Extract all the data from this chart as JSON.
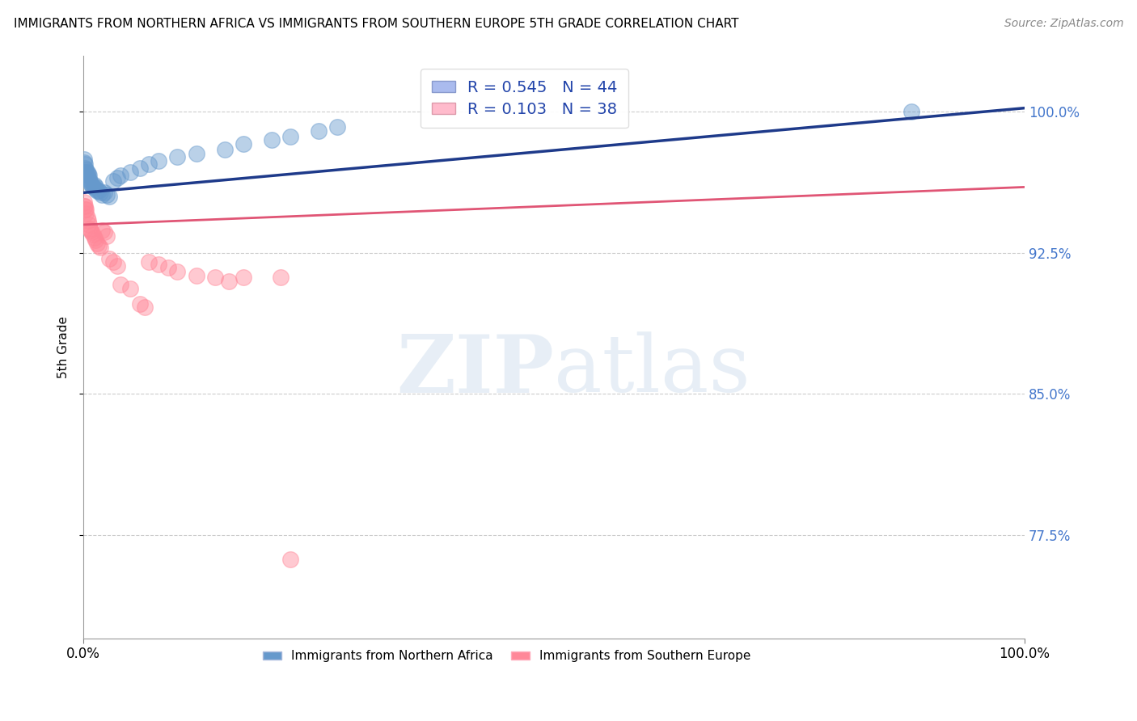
{
  "title": "IMMIGRANTS FROM NORTHERN AFRICA VS IMMIGRANTS FROM SOUTHERN EUROPE 5TH GRADE CORRELATION CHART",
  "source": "Source: ZipAtlas.com",
  "ylabel": "5th Grade",
  "yticks": [
    0.775,
    0.85,
    0.925,
    1.0
  ],
  "ytick_labels": [
    "77.5%",
    "85.0%",
    "92.5%",
    "100.0%"
  ],
  "xlim": [
    0.0,
    1.0
  ],
  "ylim": [
    0.72,
    1.03
  ],
  "legend_blue_label": "Immigrants from Northern Africa",
  "legend_pink_label": "Immigrants from Southern Europe",
  "R_blue": 0.545,
  "N_blue": 44,
  "R_pink": 0.103,
  "N_pink": 38,
  "blue_color": "#6699CC",
  "pink_color": "#FF8899",
  "blue_line_color": "#1E3A8A",
  "pink_line_color": "#E05575",
  "blue_x": [
    0.001,
    0.001,
    0.002,
    0.002,
    0.002,
    0.003,
    0.003,
    0.004,
    0.004,
    0.005,
    0.005,
    0.006,
    0.006,
    0.007,
    0.008,
    0.009,
    0.01,
    0.011,
    0.012,
    0.013,
    0.013,
    0.015,
    0.016,
    0.018,
    0.02,
    0.022,
    0.025,
    0.028,
    0.032,
    0.036,
    0.04,
    0.05,
    0.06,
    0.07,
    0.08,
    0.1,
    0.12,
    0.15,
    0.17,
    0.2,
    0.22,
    0.25,
    0.27,
    0.88
  ],
  "blue_y": [
    0.973,
    0.975,
    0.968,
    0.97,
    0.972,
    0.967,
    0.969,
    0.966,
    0.968,
    0.965,
    0.967,
    0.964,
    0.966,
    0.963,
    0.962,
    0.961,
    0.96,
    0.96,
    0.961,
    0.96,
    0.959,
    0.958,
    0.958,
    0.957,
    0.956,
    0.957,
    0.956,
    0.955,
    0.963,
    0.965,
    0.966,
    0.968,
    0.97,
    0.972,
    0.974,
    0.976,
    0.978,
    0.98,
    0.983,
    0.985,
    0.987,
    0.99,
    0.992,
    1.0
  ],
  "pink_x": [
    0.001,
    0.001,
    0.002,
    0.002,
    0.003,
    0.003,
    0.004,
    0.005,
    0.006,
    0.007,
    0.008,
    0.009,
    0.01,
    0.012,
    0.013,
    0.015,
    0.016,
    0.018,
    0.02,
    0.022,
    0.025,
    0.028,
    0.032,
    0.036,
    0.04,
    0.05,
    0.06,
    0.065,
    0.07,
    0.08,
    0.09,
    0.1,
    0.12,
    0.14,
    0.155,
    0.17,
    0.21,
    0.22
  ],
  "pink_y": [
    0.95,
    0.952,
    0.948,
    0.95,
    0.946,
    0.948,
    0.944,
    0.942,
    0.94,
    0.938,
    0.937,
    0.936,
    0.935,
    0.933,
    0.932,
    0.93,
    0.929,
    0.928,
    0.937,
    0.936,
    0.934,
    0.922,
    0.92,
    0.918,
    0.908,
    0.906,
    0.898,
    0.896,
    0.92,
    0.919,
    0.917,
    0.915,
    0.913,
    0.912,
    0.91,
    0.912,
    0.912,
    0.762
  ],
  "blue_trend_x0": 0.0,
  "blue_trend_y0": 0.957,
  "blue_trend_x1": 1.0,
  "blue_trend_y1": 1.002,
  "pink_trend_x0": 0.0,
  "pink_trend_y0": 0.94,
  "pink_trend_x1": 1.0,
  "pink_trend_y1": 0.96
}
